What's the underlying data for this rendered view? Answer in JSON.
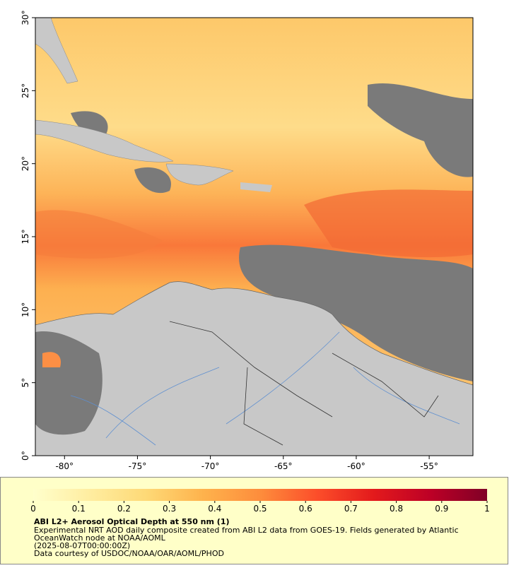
{
  "map": {
    "xlim": [
      -82,
      -52
    ],
    "ylim": [
      0,
      30
    ],
    "xticks": [
      {
        "value": -80,
        "label": "-80°"
      },
      {
        "value": -75,
        "label": "-75°"
      },
      {
        "value": -70,
        "label": "-70°"
      },
      {
        "value": -65,
        "label": "-65°"
      },
      {
        "value": -60,
        "label": "-60°"
      },
      {
        "value": -55,
        "label": "-55°"
      }
    ],
    "yticks": [
      {
        "value": 0,
        "label": "0°"
      },
      {
        "value": 5,
        "label": "5°"
      },
      {
        "value": 10,
        "label": "10°"
      },
      {
        "value": 15,
        "label": "15°"
      },
      {
        "value": 20,
        "label": "20°"
      },
      {
        "value": 25,
        "label": "25°"
      },
      {
        "value": 30,
        "label": "30°"
      }
    ]
  },
  "colorbar": {
    "lim": [
      0,
      1
    ],
    "ticks": [
      0,
      0.1,
      0.2,
      0.3,
      0.4,
      0.5,
      0.6,
      0.7,
      0.8,
      0.9,
      1
    ],
    "colors": [
      "#ffffcc",
      "#ffeda0",
      "#fed976",
      "#feb24c",
      "#fd8d3c",
      "#fc4e2a",
      "#e31a1c",
      "#bd0026",
      "#800026"
    ]
  },
  "caption": {
    "title": "ABI L2+ Aerosol Optical Depth at 550 nm (1)",
    "lines": [
      "Experimental NRT AOD daily composite created from ABI L2 data from GOES-19. Fields generated by Atlantic",
      "OceanWatch node at NOAA/AOML",
      "(2025-08-07T00:00:00Z)",
      "Data courtesy of USDOC/NOAA/OAR/AOML/PHOD"
    ]
  }
}
